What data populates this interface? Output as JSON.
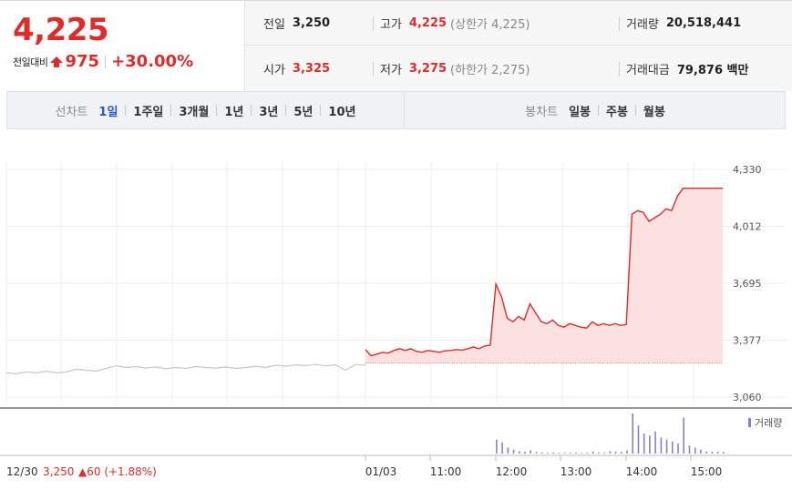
{
  "quote": {
    "price": "4,225",
    "change_label": "전일대비",
    "change_amount": "975",
    "change_pct": "+30.00%",
    "prev_close_label": "전일",
    "prev_close": "3,250",
    "high_label": "고가",
    "high": "4,225",
    "upper_limit": "(상한가 4,225)",
    "volume_label": "거래량",
    "volume": "20,518,441",
    "open_label": "시가",
    "open": "3,325",
    "low_label": "저가",
    "low": "3,275",
    "lower_limit": "(하한가 2,275)",
    "value_label": "거래대금",
    "value": "79,876 백만"
  },
  "line_chart_nav": {
    "title": "선차트",
    "items": [
      "1일",
      "1주일",
      "3개월",
      "1년",
      "3년",
      "5년",
      "10년"
    ],
    "active": "1일"
  },
  "candle_chart_nav": {
    "title": "봉차트",
    "items": [
      "일봉",
      "주봉",
      "월봉"
    ]
  },
  "colors": {
    "up": "#e02b2b",
    "active_tab": "#2856c4",
    "prev_day_line": "#c8c8c8",
    "volume_bar": "#8a7fcf",
    "area_fill": "#fde0e0"
  },
  "chart_data": {
    "type": "line",
    "y_ticks": [
      "4,330",
      "4,012",
      "3,695",
      "3,377",
      "3,060"
    ],
    "ylim": [
      3060,
      4330
    ],
    "x_ticks": [
      "01/03",
      "11:00",
      "12:00",
      "13:00",
      "14:00",
      "15:00"
    ],
    "prev_day_footer": {
      "date": "12/30",
      "close": "3,250",
      "change": "▲60 (+1.88%)"
    },
    "volume_legend": "거래량",
    "baseline": 3250,
    "prev_day_series": [
      3195,
      3190,
      3200,
      3195,
      3205,
      3195,
      3200,
      3215,
      3210,
      3205,
      3220,
      3235,
      3225,
      3230,
      3222,
      3228,
      3218,
      3225,
      3220,
      3230,
      3225,
      3222,
      3228,
      3220,
      3225,
      3232,
      3225,
      3238,
      3232,
      3240,
      3236,
      3242,
      3235,
      3240,
      3210,
      3242,
      3238
    ],
    "series": [
      {
        "values": [
          3325,
          3290,
          3300,
          3310,
          3305,
          3320,
          3330,
          3320,
          3330,
          3315,
          3310,
          3320,
          3315,
          3310,
          3318,
          3320,
          3325,
          3322,
          3330,
          3340,
          3330,
          3345,
          3350,
          3690,
          3620,
          3500,
          3480,
          3510,
          3490,
          3580,
          3530,
          3480,
          3470,
          3490,
          3460,
          3450,
          3470,
          3460,
          3450,
          3445,
          3480,
          3460,
          3470,
          3460,
          3470,
          3460,
          3465,
          4080,
          4100,
          4090,
          4040,
          4060,
          4080,
          4110,
          4100,
          4180,
          4225,
          4225,
          4225,
          4225,
          4225,
          4225,
          4225,
          4225
        ]
      }
    ],
    "volume": [
      0,
      0,
      0,
      0,
      0,
      0,
      0,
      0,
      0,
      0,
      0,
      0,
      0,
      0,
      0,
      0,
      0,
      0,
      0,
      0,
      0,
      0,
      0,
      0.35,
      0.28,
      0.15,
      0.1,
      0.06,
      0.05,
      0.08,
      0.04,
      0.03,
      0.02,
      0.03,
      0.02,
      0.02,
      0.02,
      0.02,
      0.02,
      0.02,
      0.05,
      0.03,
      0.02,
      0.06,
      0.05,
      0.04,
      0.08,
      1.0,
      0.7,
      0.5,
      0.45,
      0.55,
      0.4,
      0.35,
      0.3,
      0.25,
      0.9,
      0.2,
      0.15,
      0.1,
      0.05,
      0.05,
      0.05,
      0.04
    ]
  }
}
